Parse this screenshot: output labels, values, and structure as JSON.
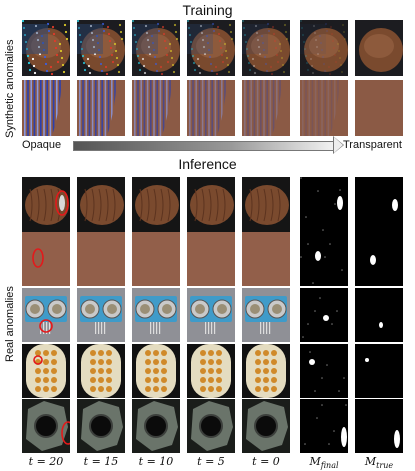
{
  "training": {
    "title": "Training",
    "row_label": "Synthetic anomalies",
    "opaque_label": "Opaque",
    "transparent_label": "Transparent",
    "columns": 7,
    "row_tops": [
      20,
      80
    ]
  },
  "inference": {
    "title": "Inference",
    "row_label": "Real anomalies",
    "column_labels": [
      "t = 20",
      "t = 15",
      "t = 10",
      "t = 5",
      "t = 0",
      "M",
      "M"
    ],
    "mask_subscripts": [
      "final",
      "true"
    ],
    "rows": [
      {
        "object": "hazelnut"
      },
      {
        "object": "carpet"
      },
      {
        "object": "pcb"
      },
      {
        "object": "capsules"
      },
      {
        "object": "metal-nut"
      }
    ]
  },
  "colors": {
    "hazelnut": "#7a4a2e",
    "carpet": "#8b5a45",
    "pcb": "#3f9bc9",
    "capsules": "#e4dcc0",
    "metal": "#6a746a",
    "mask_bg": "#000000",
    "highlight_ellipse": "#e3191b"
  }
}
